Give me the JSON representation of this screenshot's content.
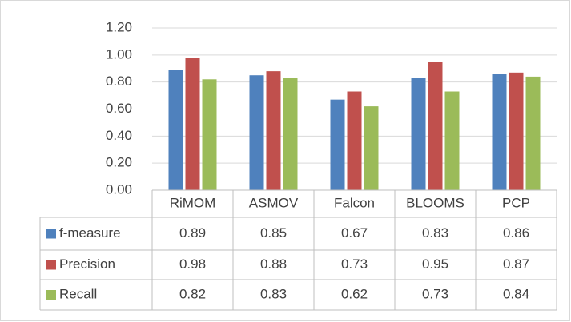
{
  "chart_data": {
    "type": "bar",
    "categories": [
      "RiMOM",
      "ASMOV",
      "Falcon",
      "BLOOMS",
      "PCP"
    ],
    "series": [
      {
        "name": "f-measure",
        "color": "#4f81bd",
        "values": [
          0.89,
          0.85,
          0.67,
          0.83,
          0.86
        ]
      },
      {
        "name": "Precision",
        "color": "#c0504d",
        "values": [
          0.98,
          0.88,
          0.73,
          0.95,
          0.87
        ]
      },
      {
        "name": "Recall",
        "color": "#9bbb59",
        "values": [
          0.82,
          0.83,
          0.62,
          0.73,
          0.84
        ]
      }
    ],
    "ylim": [
      0,
      1.2
    ],
    "yticks": [
      {
        "value": 0,
        "label": "0.00"
      },
      {
        "value": 0.2,
        "label": "0.20"
      },
      {
        "value": 0.4,
        "label": "0.40"
      },
      {
        "value": 0.6,
        "label": "0.60"
      },
      {
        "value": 0.8,
        "label": "0.80"
      },
      {
        "value": 1.0,
        "label": "1.00"
      },
      {
        "value": 1.2,
        "label": "1.20"
      }
    ],
    "grid": true
  }
}
